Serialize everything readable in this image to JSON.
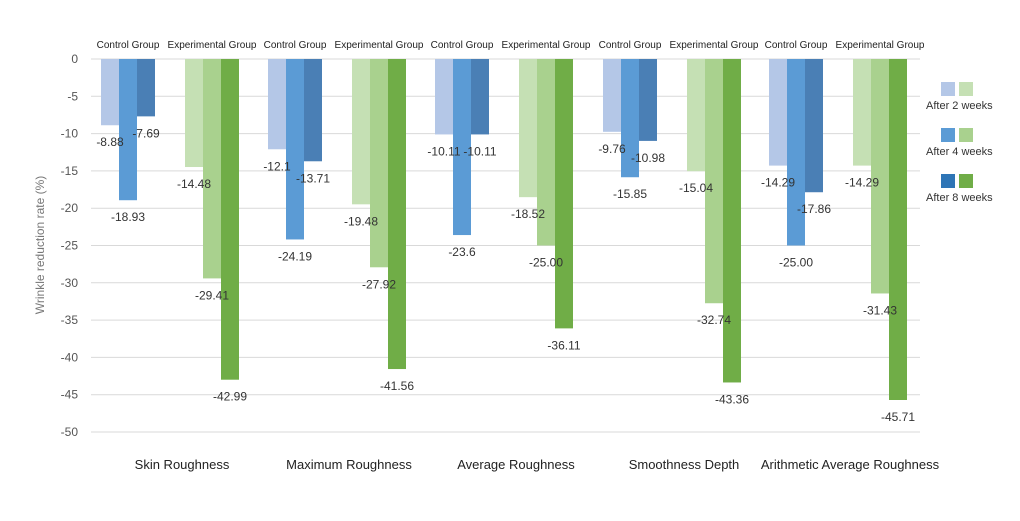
{
  "chart_data": {
    "type": "bar",
    "ylabel": "Wrinkle reduction rate (%)",
    "ylim": [
      -50,
      0
    ],
    "yticks": [
      0,
      -5,
      -10,
      -15,
      -20,
      -25,
      -30,
      -35,
      -40,
      -45,
      -50
    ],
    "grid": true,
    "legend_position": "right",
    "legend": [
      {
        "label": "After 2 weeks",
        "colors": [
          "#b4c7e7",
          "#c5e0b4"
        ]
      },
      {
        "label": "After 4 weeks",
        "colors": [
          "#5b9bd5",
          "#a9d18e"
        ]
      },
      {
        "label": "After 8 weeks",
        "colors": [
          "#2e75b6",
          "#70ad47"
        ]
      }
    ],
    "categories": [
      "Skin Roughness",
      "Maximum Roughness",
      "Average Roughness",
      "Smoothness Depth",
      "Arithmetic Average Roughness"
    ],
    "groups": [
      {
        "name": "Control Group",
        "colors": [
          "#b4c7e7",
          "#5b9bd5",
          "#4a7fb5"
        ],
        "series": [
          {
            "name": "After 2 weeks",
            "values": [
              -8.88,
              -12.1,
              -10.11,
              -9.76,
              -14.29
            ],
            "labels": [
              "-8.88",
              "-12.1",
              "-10.11",
              "-9.76",
              "-14.29"
            ]
          },
          {
            "name": "After 4 weeks",
            "values": [
              -18.93,
              -24.19,
              -23.6,
              -15.85,
              -25.0
            ],
            "labels": [
              "-18.93",
              "-24.19",
              "-23.6",
              "-15.85",
              "-25.00"
            ]
          },
          {
            "name": "After 8 weeks",
            "values": [
              -7.69,
              -13.71,
              -10.11,
              -10.98,
              -17.86
            ],
            "labels": [
              "-7.69",
              "-13.71",
              "-10.11",
              "-10.98",
              "-17.86"
            ]
          }
        ]
      },
      {
        "name": "Experimental Group",
        "colors": [
          "#c5e0b4",
          "#a9d18e",
          "#70ad47"
        ],
        "series": [
          {
            "name": "After 2 weeks",
            "values": [
              -14.48,
              -19.48,
              -18.52,
              -15.04,
              -14.29
            ],
            "labels": [
              "-14.48",
              "-19.48",
              "-18.52",
              "-15.04",
              "-14.29"
            ]
          },
          {
            "name": "After 4 weeks",
            "values": [
              -29.41,
              -27.92,
              -25.0,
              -32.74,
              -31.43
            ],
            "labels": [
              "-29.41",
              "-27.92",
              "-25.00",
              "-32.74",
              "-31.43"
            ]
          },
          {
            "name": "After 8 weeks",
            "values": [
              -42.99,
              -41.56,
              -36.11,
              -43.36,
              -45.71
            ],
            "labels": [
              "-42.99",
              "-41.56",
              "-36.11",
              "-43.36",
              "-45.71"
            ]
          }
        ]
      }
    ]
  }
}
